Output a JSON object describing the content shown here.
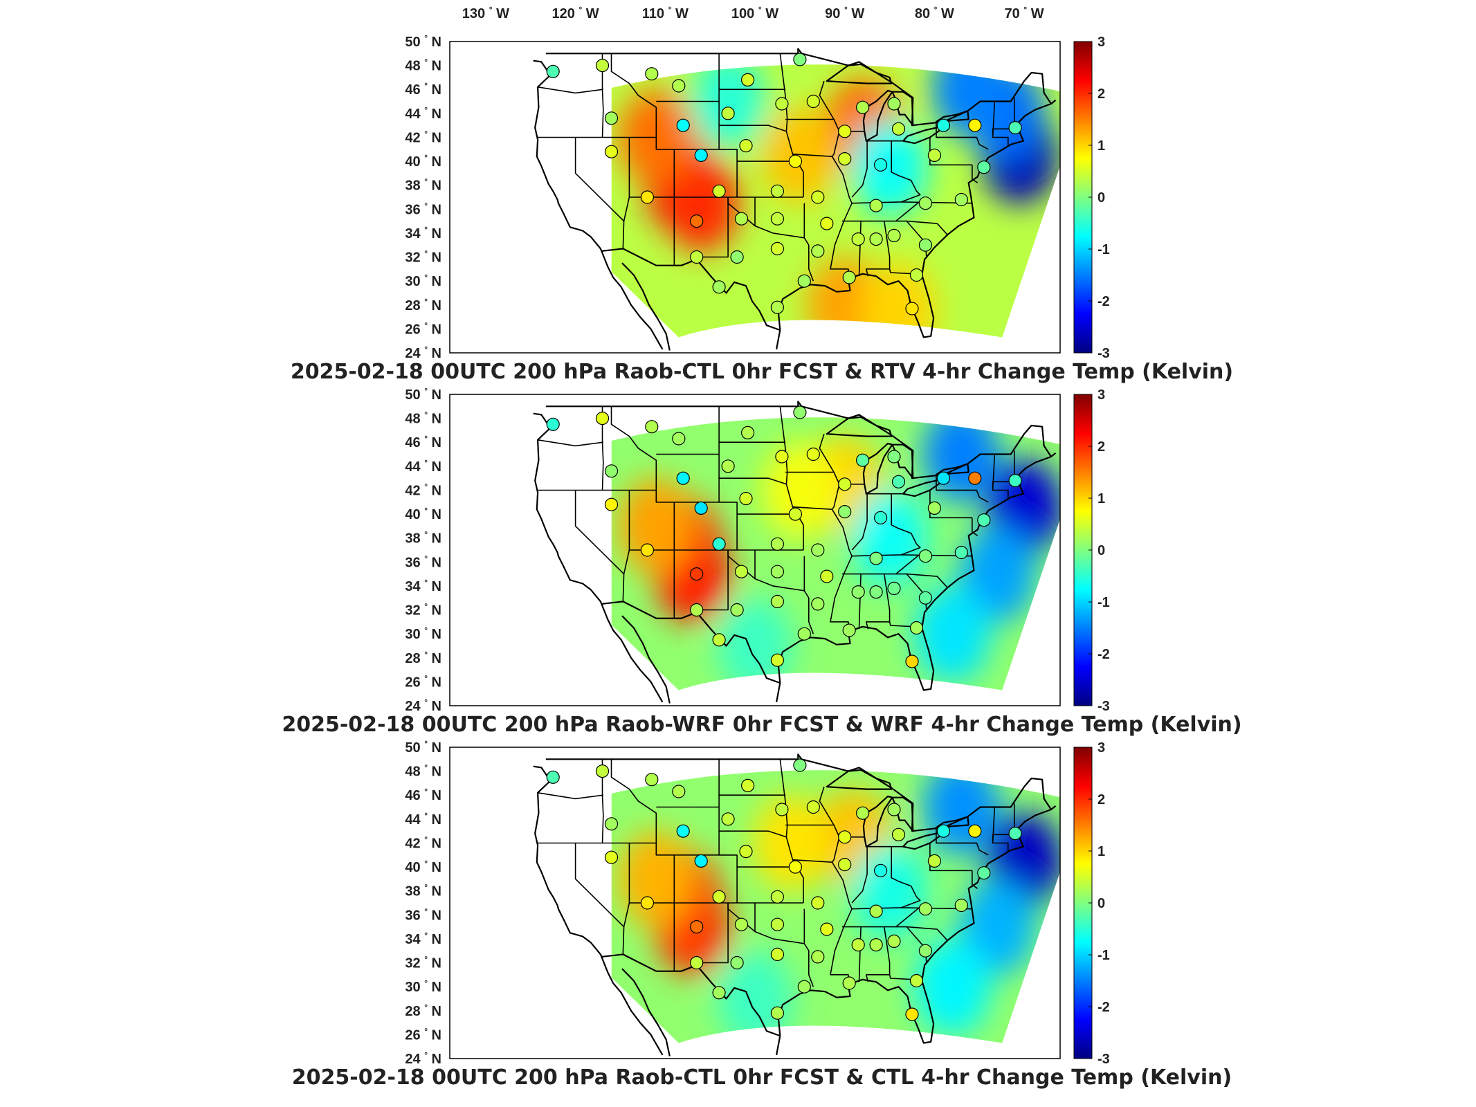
{
  "figure": {
    "lon_labels": [
      "130",
      "120",
      "110",
      "100",
      "90",
      "80",
      "70"
    ],
    "lon_hemisphere": "W",
    "lat_labels": [
      "50",
      "48",
      "46",
      "44",
      "42",
      "40",
      "38",
      "36",
      "34",
      "32",
      "30",
      "28",
      "26",
      "24"
    ],
    "lat_hemisphere": "N",
    "degree_symbol": "°"
  },
  "chart_data": [
    {
      "type": "heatmap",
      "title": "2025-02-18 00UTC 200 hPa Raob-CTL 0hr FCST & RTV 4-hr Change Temp (Kelvin)",
      "xlabel": "",
      "ylabel": "",
      "x_ticks": [
        "130° W",
        "120° W",
        "110° W",
        "100° W",
        "90° W",
        "80° W",
        "70° W"
      ],
      "y_ticks": [
        "50° N",
        "48° N",
        "46° N",
        "44° N",
        "42° N",
        "40° N",
        "38° N",
        "36° N",
        "34° N",
        "32° N",
        "30° N",
        "28° N",
        "26° N",
        "24° N"
      ],
      "colorbar": {
        "ticks": [
          "3",
          "2",
          "1",
          "0",
          "-1",
          "-2",
          "-3"
        ],
        "range": [
          -3,
          3
        ],
        "colormap": "jet"
      },
      "field_features": [
        {
          "lon": -108,
          "lat": 38,
          "value": 2.3
        },
        {
          "lon": -106,
          "lat": 36.5,
          "value": 2.0
        },
        {
          "lon": -111,
          "lat": 42,
          "value": 1.6
        },
        {
          "lon": -88,
          "lat": 43,
          "value": 1.6
        },
        {
          "lon": -95,
          "lat": 40.5,
          "value": 1.1
        },
        {
          "lon": -90,
          "lat": 28,
          "value": 1.3
        },
        {
          "lon": -84,
          "lat": 27.5,
          "value": 1.0
        },
        {
          "lon": -70.5,
          "lat": 40.5,
          "value": -2.7
        },
        {
          "lon": -72,
          "lat": 44,
          "value": -1.6
        },
        {
          "lon": -76,
          "lat": 46,
          "value": -1.5
        },
        {
          "lon": -85,
          "lat": 39.5,
          "value": -0.7
        },
        {
          "lon": -103,
          "lat": 45,
          "value": -0.5
        }
      ],
      "stations": [
        {
          "lon": -122.5,
          "lat": 47.5,
          "value": -0.3
        },
        {
          "lon": -117,
          "lat": 48,
          "value": 0.4
        },
        {
          "lon": -111.5,
          "lat": 47.3,
          "value": 0.3
        },
        {
          "lon": -108.5,
          "lat": 46.3,
          "value": 0.3
        },
        {
          "lon": -100.8,
          "lat": 46.8,
          "value": 0.5
        },
        {
          "lon": -95,
          "lat": 48.5,
          "value": 0
        },
        {
          "lon": -116,
          "lat": 43.6,
          "value": 0.2
        },
        {
          "lon": -108,
          "lat": 43,
          "value": -0.7
        },
        {
          "lon": -103,
          "lat": 44,
          "value": 0.4
        },
        {
          "lon": -97,
          "lat": 44.8,
          "value": 0.4
        },
        {
          "lon": -93.5,
          "lat": 45,
          "value": 0.5
        },
        {
          "lon": -88,
          "lat": 44.5,
          "value": 0.3
        },
        {
          "lon": -84.5,
          "lat": 44.8,
          "value": 0.2
        },
        {
          "lon": -90,
          "lat": 42.5,
          "value": 0.6
        },
        {
          "lon": -84,
          "lat": 42.7,
          "value": 0.4
        },
        {
          "lon": -79,
          "lat": 43,
          "value": -0.6
        },
        {
          "lon": -75.5,
          "lat": 43,
          "value": 0.8
        },
        {
          "lon": -71,
          "lat": 42.8,
          "value": -0.3
        },
        {
          "lon": -116,
          "lat": 40.8,
          "value": 0.6
        },
        {
          "lon": -106,
          "lat": 40.5,
          "value": -0.8
        },
        {
          "lon": -101,
          "lat": 41.3,
          "value": 0.5
        },
        {
          "lon": -95.5,
          "lat": 40,
          "value": 0.7
        },
        {
          "lon": -90,
          "lat": 40.2,
          "value": 0.5
        },
        {
          "lon": -86,
          "lat": 39.7,
          "value": -0.6
        },
        {
          "lon": -80,
          "lat": 40.5,
          "value": 0.4
        },
        {
          "lon": -74.5,
          "lat": 39.5,
          "value": -0.2
        },
        {
          "lon": -112,
          "lat": 37,
          "value": 0.9
        },
        {
          "lon": -104,
          "lat": 37.5,
          "value": 0.5
        },
        {
          "lon": -97.5,
          "lat": 37.5,
          "value": 0.4
        },
        {
          "lon": -93,
          "lat": 37,
          "value": 0.5
        },
        {
          "lon": -86.5,
          "lat": 36.3,
          "value": 0.3
        },
        {
          "lon": -81,
          "lat": 36.5,
          "value": 0.2
        },
        {
          "lon": -77,
          "lat": 36.8,
          "value": 0.2
        },
        {
          "lon": -106.5,
          "lat": 35,
          "value": 1.6
        },
        {
          "lon": -101.5,
          "lat": 35.2,
          "value": 0.3
        },
        {
          "lon": -97.5,
          "lat": 35.2,
          "value": 0.4
        },
        {
          "lon": -92,
          "lat": 34.8,
          "value": 0.6
        },
        {
          "lon": -88.5,
          "lat": 33.5,
          "value": 0.4
        },
        {
          "lon": -86.5,
          "lat": 33.5,
          "value": 0.3
        },
        {
          "lon": -84.5,
          "lat": 33.8,
          "value": 0.3
        },
        {
          "lon": -81,
          "lat": 33,
          "value": 0.1
        },
        {
          "lon": -106.5,
          "lat": 32,
          "value": 0.4
        },
        {
          "lon": -102,
          "lat": 32,
          "value": 0.1
        },
        {
          "lon": -97.5,
          "lat": 32.7,
          "value": 0.5
        },
        {
          "lon": -93,
          "lat": 32.5,
          "value": 0.3
        },
        {
          "lon": -104,
          "lat": 29.5,
          "value": 0.2
        },
        {
          "lon": -97.5,
          "lat": 27.8,
          "value": 0.3
        },
        {
          "lon": -94.5,
          "lat": 30,
          "value": 0.2
        },
        {
          "lon": -89.5,
          "lat": 30.3,
          "value": 0.3
        },
        {
          "lon": -82,
          "lat": 30.5,
          "value": 0.4
        },
        {
          "lon": -82.5,
          "lat": 27.7,
          "value": 0.9
        }
      ]
    },
    {
      "type": "heatmap",
      "title": "2025-02-18 00UTC 200 hPa Raob-WRF 0hr FCST & WRF 4-hr Change Temp (Kelvin)",
      "xlabel": "",
      "ylabel": "",
      "y_ticks": [
        "50° N",
        "48° N",
        "46° N",
        "44° N",
        "42° N",
        "40° N",
        "38° N",
        "36° N",
        "34° N",
        "32° N",
        "30° N",
        "28° N",
        "26° N",
        "24° N"
      ],
      "colorbar": {
        "ticks": [
          "3",
          "2",
          "1",
          "0",
          "-1",
          "-2",
          "-3"
        ],
        "range": [
          -3,
          3
        ],
        "colormap": "jet"
      },
      "field_features": [
        {
          "lon": -108,
          "lat": 37.5,
          "value": 2.0
        },
        {
          "lon": -107,
          "lat": 35,
          "value": 2.1
        },
        {
          "lon": -111,
          "lat": 39,
          "value": 1.3
        },
        {
          "lon": -90,
          "lat": 42.5,
          "value": 1.0
        },
        {
          "lon": -95,
          "lat": 42,
          "value": 0.7
        },
        {
          "lon": -77,
          "lat": 45,
          "value": -1.5
        },
        {
          "lon": -70,
          "lat": 40.5,
          "value": -2.5
        },
        {
          "lon": -73,
          "lat": 35,
          "value": -1.3
        },
        {
          "lon": -78,
          "lat": 30,
          "value": -0.9
        },
        {
          "lon": -100,
          "lat": 29,
          "value": -0.4
        },
        {
          "lon": -85,
          "lat": 38,
          "value": -0.7
        }
      ],
      "stations": [
        {
          "lon": -122.5,
          "lat": 47.5,
          "value": -0.5
        },
        {
          "lon": -117,
          "lat": 48,
          "value": 0.6
        },
        {
          "lon": -111.5,
          "lat": 47.3,
          "value": 0.3
        },
        {
          "lon": -108.5,
          "lat": 46.3,
          "value": 0.2
        },
        {
          "lon": -100.8,
          "lat": 46.8,
          "value": 0.3
        },
        {
          "lon": -95,
          "lat": 48.5,
          "value": 0.1
        },
        {
          "lon": -116,
          "lat": 43.6,
          "value": 0.1
        },
        {
          "lon": -108,
          "lat": 43,
          "value": -0.8
        },
        {
          "lon": -103,
          "lat": 44,
          "value": 0.3
        },
        {
          "lon": -97,
          "lat": 44.8,
          "value": 0.6
        },
        {
          "lon": -93.5,
          "lat": 45,
          "value": 0.6
        },
        {
          "lon": -88,
          "lat": 44.5,
          "value": -0.2
        },
        {
          "lon": -84.5,
          "lat": 44.8,
          "value": 0.0
        },
        {
          "lon": -90,
          "lat": 42.5,
          "value": 0.5
        },
        {
          "lon": -84,
          "lat": 42.7,
          "value": -0.3
        },
        {
          "lon": -79,
          "lat": 43,
          "value": -0.9
        },
        {
          "lon": -75.5,
          "lat": 43,
          "value": 1.5
        },
        {
          "lon": -71,
          "lat": 42.8,
          "value": -0.4
        },
        {
          "lon": -116,
          "lat": 40.8,
          "value": 0.8
        },
        {
          "lon": -106,
          "lat": 40.5,
          "value": -0.9
        },
        {
          "lon": -101,
          "lat": 41.3,
          "value": 0.5
        },
        {
          "lon": -95.5,
          "lat": 40,
          "value": 0.5
        },
        {
          "lon": -90,
          "lat": 40.2,
          "value": 0.1
        },
        {
          "lon": -86,
          "lat": 39.7,
          "value": -0.5
        },
        {
          "lon": -80,
          "lat": 40.5,
          "value": 0.2
        },
        {
          "lon": -74.5,
          "lat": 39.5,
          "value": -0.3
        },
        {
          "lon": -112,
          "lat": 37,
          "value": 0.9
        },
        {
          "lon": -104,
          "lat": 37.5,
          "value": -0.5
        },
        {
          "lon": -97.5,
          "lat": 37.5,
          "value": 0.3
        },
        {
          "lon": -93,
          "lat": 37,
          "value": 0.2
        },
        {
          "lon": -86.5,
          "lat": 36.3,
          "value": 0.0
        },
        {
          "lon": -81,
          "lat": 36.5,
          "value": 0.0
        },
        {
          "lon": -77,
          "lat": 36.8,
          "value": -0.3
        },
        {
          "lon": -106.5,
          "lat": 35,
          "value": 1.9
        },
        {
          "lon": -101.5,
          "lat": 35.2,
          "value": 0.4
        },
        {
          "lon": -97.5,
          "lat": 35.2,
          "value": 0.2
        },
        {
          "lon": -92,
          "lat": 34.8,
          "value": 0.5
        },
        {
          "lon": -88.5,
          "lat": 33.5,
          "value": 0.1
        },
        {
          "lon": -86.5,
          "lat": 33.5,
          "value": 0.0
        },
        {
          "lon": -84.5,
          "lat": 33.8,
          "value": -0.1
        },
        {
          "lon": -81,
          "lat": 33,
          "value": -0.2
        },
        {
          "lon": -106.5,
          "lat": 32,
          "value": 0.3
        },
        {
          "lon": -102,
          "lat": 32,
          "value": 0.2
        },
        {
          "lon": -97.5,
          "lat": 32.7,
          "value": 0.3
        },
        {
          "lon": -93,
          "lat": 32.5,
          "value": 0.2
        },
        {
          "lon": -104,
          "lat": 29.5,
          "value": 0.4
        },
        {
          "lon": -97.5,
          "lat": 27.8,
          "value": 0.5
        },
        {
          "lon": -94.5,
          "lat": 30,
          "value": 0.2
        },
        {
          "lon": -89.5,
          "lat": 30.3,
          "value": 0.2
        },
        {
          "lon": -82,
          "lat": 30.5,
          "value": 0.2
        },
        {
          "lon": -82.5,
          "lat": 27.7,
          "value": 1.0
        }
      ]
    },
    {
      "type": "heatmap",
      "title": "2025-02-18 00UTC 200 hPa Raob-CTL 0hr FCST & CTL 4-hr Change Temp (Kelvin)",
      "xlabel": "",
      "ylabel": "",
      "y_ticks": [
        "50° N",
        "48° N",
        "46° N",
        "44° N",
        "42° N",
        "40° N",
        "38° N",
        "36° N",
        "34° N",
        "32° N",
        "30° N",
        "28° N",
        "26° N",
        "24° N"
      ],
      "colorbar": {
        "ticks": [
          "3",
          "2",
          "1",
          "0",
          "-1",
          "-2",
          "-3"
        ],
        "range": [
          -3,
          3
        ],
        "colormap": "jet"
      },
      "field_features": [
        {
          "lon": -108,
          "lat": 37.5,
          "value": 1.9
        },
        {
          "lon": -107,
          "lat": 35,
          "value": 1.9
        },
        {
          "lon": -111,
          "lat": 39,
          "value": 1.2
        },
        {
          "lon": -89,
          "lat": 42.5,
          "value": 1.1
        },
        {
          "lon": -96,
          "lat": 42,
          "value": 0.9
        },
        {
          "lon": -77,
          "lat": 45,
          "value": -1.4
        },
        {
          "lon": -70,
          "lat": 40.5,
          "value": -2.6
        },
        {
          "lon": -73,
          "lat": 35,
          "value": -1.2
        },
        {
          "lon": -78,
          "lat": 30,
          "value": -0.8
        },
        {
          "lon": -100,
          "lat": 29,
          "value": -0.4
        },
        {
          "lon": -85,
          "lat": 38,
          "value": -0.6
        }
      ],
      "stations": [
        {
          "lon": -122.5,
          "lat": 47.5,
          "value": -0.3
        },
        {
          "lon": -117,
          "lat": 48,
          "value": 0.4
        },
        {
          "lon": -111.5,
          "lat": 47.3,
          "value": 0.3
        },
        {
          "lon": -108.5,
          "lat": 46.3,
          "value": 0.3
        },
        {
          "lon": -100.8,
          "lat": 46.8,
          "value": 0.5
        },
        {
          "lon": -95,
          "lat": 48.5,
          "value": 0
        },
        {
          "lon": -116,
          "lat": 43.6,
          "value": 0.2
        },
        {
          "lon": -108,
          "lat": 43,
          "value": -0.7
        },
        {
          "lon": -103,
          "lat": 44,
          "value": 0.4
        },
        {
          "lon": -97,
          "lat": 44.8,
          "value": 0.4
        },
        {
          "lon": -93.5,
          "lat": 45,
          "value": 0.5
        },
        {
          "lon": -88,
          "lat": 44.5,
          "value": 0.3
        },
        {
          "lon": -84.5,
          "lat": 44.8,
          "value": 0.2
        },
        {
          "lon": -90,
          "lat": 42.5,
          "value": 0.6
        },
        {
          "lon": -84,
          "lat": 42.7,
          "value": 0.4
        },
        {
          "lon": -79,
          "lat": 43,
          "value": -0.6
        },
        {
          "lon": -75.5,
          "lat": 43,
          "value": 0.8
        },
        {
          "lon": -71,
          "lat": 42.8,
          "value": -0.3
        },
        {
          "lon": -116,
          "lat": 40.8,
          "value": 0.6
        },
        {
          "lon": -106,
          "lat": 40.5,
          "value": -0.8
        },
        {
          "lon": -101,
          "lat": 41.3,
          "value": 0.5
        },
        {
          "lon": -95.5,
          "lat": 40,
          "value": 0.7
        },
        {
          "lon": -90,
          "lat": 40.2,
          "value": 0.5
        },
        {
          "lon": -86,
          "lat": 39.7,
          "value": -0.6
        },
        {
          "lon": -80,
          "lat": 40.5,
          "value": 0.4
        },
        {
          "lon": -74.5,
          "lat": 39.5,
          "value": -0.2
        },
        {
          "lon": -112,
          "lat": 37,
          "value": 0.9
        },
        {
          "lon": -104,
          "lat": 37.5,
          "value": 0.5
        },
        {
          "lon": -97.5,
          "lat": 37.5,
          "value": 0.4
        },
        {
          "lon": -93,
          "lat": 37,
          "value": 0.5
        },
        {
          "lon": -86.5,
          "lat": 36.3,
          "value": 0.3
        },
        {
          "lon": -81,
          "lat": 36.5,
          "value": 0.2
        },
        {
          "lon": -77,
          "lat": 36.8,
          "value": 0.2
        },
        {
          "lon": -106.5,
          "lat": 35,
          "value": 1.6
        },
        {
          "lon": -101.5,
          "lat": 35.2,
          "value": 0.3
        },
        {
          "lon": -97.5,
          "lat": 35.2,
          "value": 0.4
        },
        {
          "lon": -92,
          "lat": 34.8,
          "value": 0.6
        },
        {
          "lon": -88.5,
          "lat": 33.5,
          "value": 0.4
        },
        {
          "lon": -86.5,
          "lat": 33.5,
          "value": 0.3
        },
        {
          "lon": -84.5,
          "lat": 33.8,
          "value": 0.3
        },
        {
          "lon": -81,
          "lat": 33,
          "value": 0.1
        },
        {
          "lon": -106.5,
          "lat": 32,
          "value": 0.4
        },
        {
          "lon": -102,
          "lat": 32,
          "value": 0.1
        },
        {
          "lon": -97.5,
          "lat": 32.7,
          "value": 0.5
        },
        {
          "lon": -93,
          "lat": 32.5,
          "value": 0.3
        },
        {
          "lon": -104,
          "lat": 29.5,
          "value": 0.2
        },
        {
          "lon": -97.5,
          "lat": 27.8,
          "value": 0.3
        },
        {
          "lon": -94.5,
          "lat": 30,
          "value": 0.2
        },
        {
          "lon": -89.5,
          "lat": 30.3,
          "value": 0.3
        },
        {
          "lon": -82,
          "lat": 30.5,
          "value": 0.4
        },
        {
          "lon": -82.5,
          "lat": 27.7,
          "value": 0.9
        }
      ]
    }
  ]
}
